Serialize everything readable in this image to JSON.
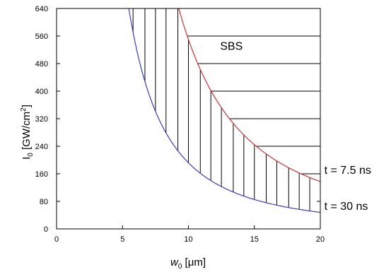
{
  "chart_data": {
    "type": "line",
    "title": "",
    "xlabel": {
      "main": "w",
      "sub": "0",
      "unit": " [μm]"
    },
    "ylabel": {
      "main": "I",
      "sub": "0",
      "unit": " [GW/cm",
      "sup": "2",
      "close": "]"
    },
    "xlim": [
      0,
      20
    ],
    "ylim": [
      0,
      640
    ],
    "xticks": [
      0,
      5,
      10,
      15,
      20
    ],
    "yticks": [
      0,
      80,
      160,
      240,
      320,
      400,
      480,
      560,
      640
    ],
    "xtick_labels": [
      "0",
      "5",
      "10",
      "15",
      "20"
    ],
    "ytick_labels": [
      "0",
      "80",
      "160",
      "240",
      "320",
      "400",
      "480",
      "560",
      "640"
    ],
    "grid": false,
    "series": [
      {
        "name": "t = 30 ns",
        "color": "#3a3ad6",
        "k": 19200,
        "x_from": 5.48,
        "x_to": 20
      },
      {
        "name": "t = 7.5 ns",
        "color": "#d63030",
        "k": 55000,
        "x_from": 9.27,
        "x_to": 20
      }
    ],
    "annotations": [
      {
        "text": "SBS",
        "x": 12.4,
        "y": 520
      },
      {
        "text": "t = 7.5 ns",
        "x": 20.3,
        "y": 160
      },
      {
        "text": "t = 30 ns",
        "x": 20.3,
        "y": 55
      }
    ],
    "hatch": {
      "vertical_x": [
        5.8,
        6.7,
        7.5,
        8.3,
        9.2,
        10.0,
        10.9,
        11.7,
        12.5,
        13.4,
        14.2,
        15.0,
        15.9,
        16.7,
        17.6,
        18.4,
        19.2
      ],
      "horizontal_y": [
        560,
        480,
        400,
        320,
        240,
        160
      ]
    }
  }
}
